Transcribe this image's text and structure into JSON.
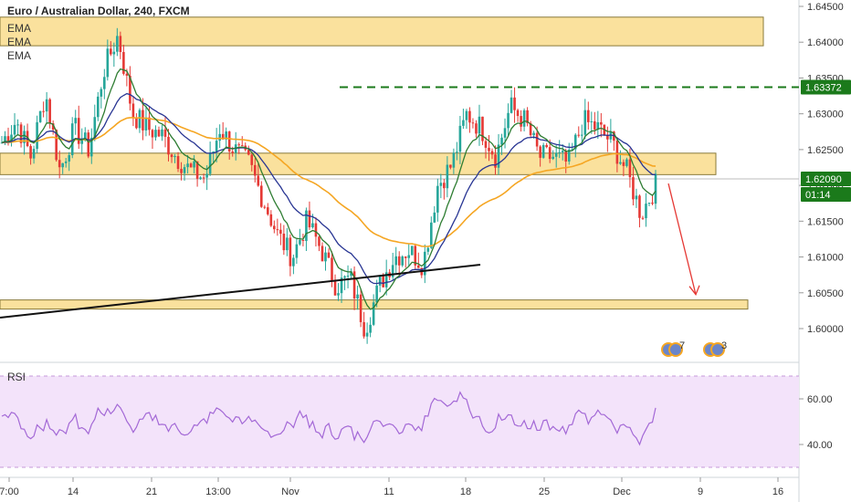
{
  "header": {
    "title": "Euro / Australian Dollar, 240, FXCM",
    "indicators": [
      "EMA",
      "EMA",
      "EMA"
    ],
    "rsi_label": "RSI"
  },
  "colors": {
    "up_candle": "#26a69a",
    "down_candle": "#e53935",
    "ema_fast": "#2e7d32",
    "ema_slow": "#283593",
    "ema_long": "#f5a623",
    "zone_fill": "#f9dc8c",
    "zone_border": "#8a7a3a",
    "target_line": "#1b7a1b",
    "rsi_line": "#a368d6",
    "rsi_band": "#f3e3fa",
    "arrow": "#e53935"
  },
  "badges": {
    "target_price": "1.63372",
    "current_price": "1.62090",
    "countdown": "01:14"
  },
  "events": [
    {
      "name": "economic-events-icon",
      "count": "7"
    },
    {
      "name": "economic-events-icon",
      "count": "3"
    }
  ],
  "chart_data": [
    {
      "type": "candlestick",
      "title": "Euro / Australian Dollar, 240, FXCM",
      "y_ticks": [
        "1.64500",
        "1.64000",
        "1.63500",
        "1.63000",
        "1.62500",
        "1.62000",
        "1.61500",
        "1.61000",
        "1.60500",
        "1.60000"
      ],
      "y_tick_values": [
        1.645,
        1.64,
        1.635,
        1.63,
        1.625,
        1.62,
        1.615,
        1.61,
        1.605,
        1.6
      ],
      "x_ticks": [
        "7:00",
        "14",
        "21",
        "13:00",
        "Nov",
        "11",
        "18",
        "25",
        "Dec",
        "9",
        "16"
      ],
      "ylim": [
        1.5975,
        1.6455
      ],
      "series_overview": [
        1.626,
        1.629,
        1.624,
        1.633,
        1.622,
        1.628,
        1.625,
        1.636,
        1.641,
        1.63,
        1.628,
        1.627,
        1.624,
        1.622,
        1.621,
        1.628,
        1.625,
        1.623,
        1.618,
        1.613,
        1.61,
        1.615,
        1.611,
        1.606,
        1.607,
        1.6,
        1.606,
        1.61,
        1.611,
        1.609,
        1.62,
        1.623,
        1.63,
        1.628,
        1.624,
        1.631,
        1.629,
        1.624,
        1.624,
        1.623,
        1.629,
        1.628,
        1.626,
        1.622,
        1.616,
        1.62
      ],
      "support_trendline": {
        "from": 1.6005,
        "to": 1.6089
      },
      "zones": [
        {
          "low": 1.6395,
          "high": 1.6435
        },
        {
          "low": 1.6215,
          "high": 1.6245
        },
        {
          "low": 1.603,
          "high": 1.604
        }
      ],
      "target_level": 1.63372,
      "current_price": 1.6209,
      "projection_target": 1.6045
    },
    {
      "type": "line",
      "title": "RSI",
      "y_ticks": [
        "60.00",
        "40.00"
      ],
      "y_tick_values": [
        60,
        40
      ],
      "ylim": [
        28,
        75
      ],
      "band": [
        30,
        70
      ]
    }
  ]
}
